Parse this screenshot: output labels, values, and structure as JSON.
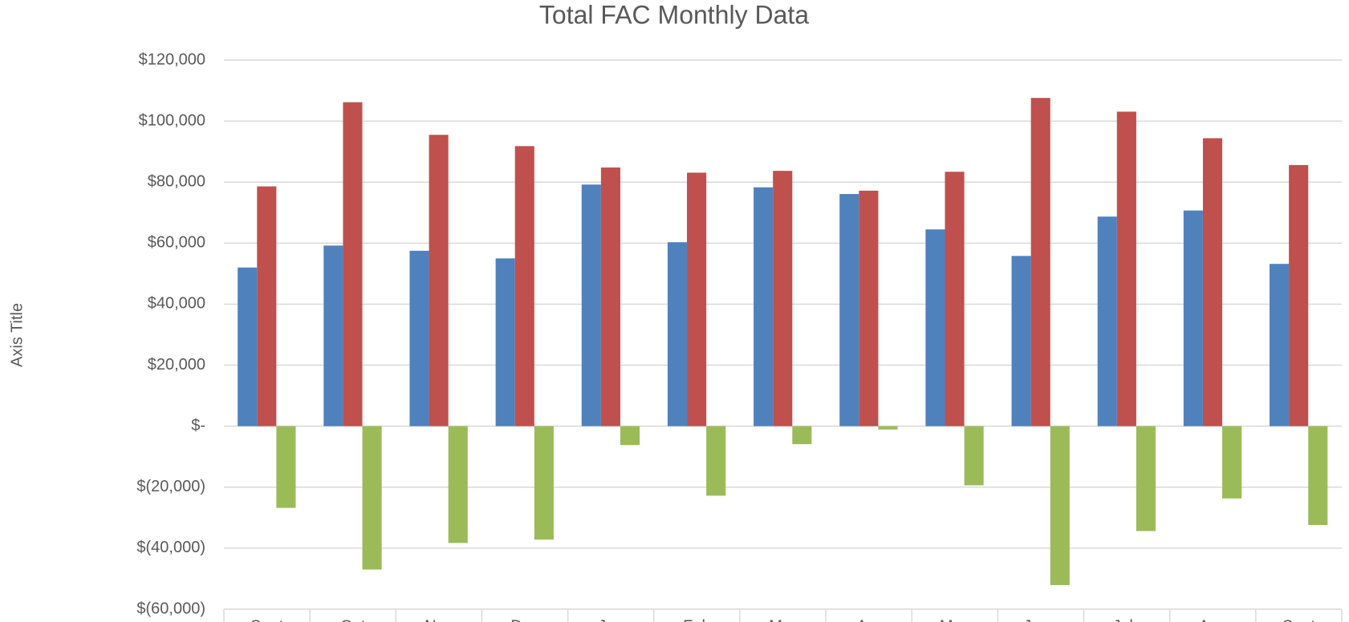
{
  "chart_data": {
    "type": "bar",
    "title": "Total FAC Monthly Data",
    "y_label": "Axis Title",
    "categories": [
      "Sept",
      "Oct",
      "Nov",
      "Dec",
      "Jan",
      "Feb",
      "Mar",
      "Apr",
      "May",
      "June",
      "July",
      "Aug",
      "Sept"
    ],
    "series": [
      {
        "color": "#4f81bd",
        "values": [
          52000,
          59200,
          57500,
          55000,
          79200,
          60300,
          78300,
          76100,
          64500,
          55800,
          68700,
          70700,
          53200
        ]
      },
      {
        "color": "#c0504d",
        "values": [
          78600,
          106200,
          95500,
          91800,
          84800,
          83100,
          83700,
          77200,
          83400,
          107600,
          103100,
          94400,
          85600
        ]
      },
      {
        "color": "#9bbb59",
        "values": [
          -26800,
          -47000,
          -38300,
          -37200,
          -6200,
          -22800,
          -5900,
          -1100,
          -19400,
          -52100,
          -34400,
          -23700,
          -32400
        ]
      }
    ],
    "ylim": [
      -60000,
      120000
    ],
    "yticks": [
      {
        "value": -60000,
        "label": "$(60,000)"
      },
      {
        "value": -40000,
        "label": "$(40,000)"
      },
      {
        "value": -20000,
        "label": "$(20,000)"
      },
      {
        "value": 0,
        "label": "$-"
      },
      {
        "value": 20000,
        "label": "$20,000"
      },
      {
        "value": 40000,
        "label": "$40,000"
      },
      {
        "value": 60000,
        "label": "$60,000"
      },
      {
        "value": 80000,
        "label": "$80,000"
      },
      {
        "value": 100000,
        "label": "$100,000"
      },
      {
        "value": 120000,
        "label": "$120,000"
      }
    ],
    "grid": true
  }
}
